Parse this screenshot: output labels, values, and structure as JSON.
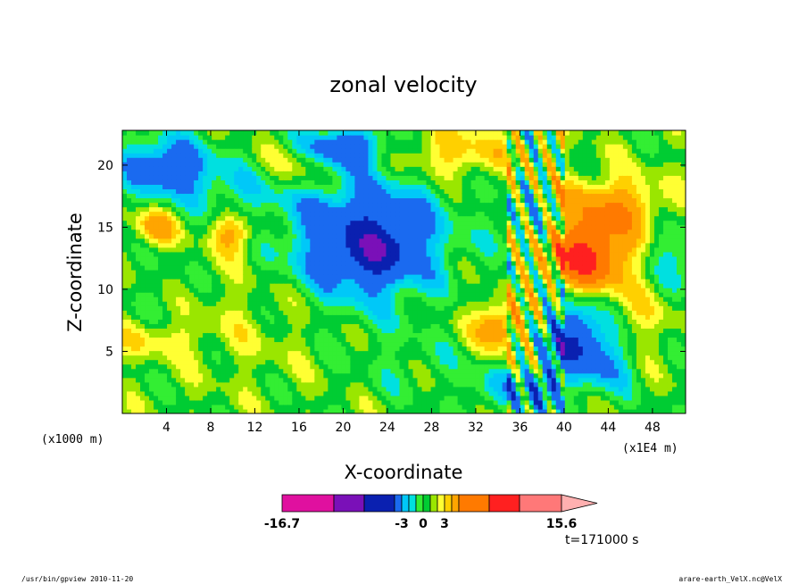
{
  "chart_data": {
    "type": "heatmap",
    "title": "zonal velocity",
    "xlabel": "X-coordinate",
    "ylabel": "Z-coordinate",
    "x_unit_left": "(x1000 m)",
    "x_unit_right": "(x1E4 m)",
    "xlim": [
      0,
      51
    ],
    "ylim": [
      0,
      22.8
    ],
    "x_ticks": [
      4,
      8,
      12,
      16,
      20,
      24,
      28,
      32,
      36,
      40,
      44,
      48
    ],
    "y_ticks": [
      5,
      10,
      15,
      20
    ],
    "time_label": "t=171000 s",
    "colorbar": {
      "levels": [
        -16.7,
        -12,
        -9,
        -6,
        -3,
        -2,
        -1,
        0,
        1,
        2,
        3,
        4,
        6,
        9,
        12,
        15.6
      ],
      "labels": [
        "-16.7",
        "-3",
        "0",
        "3",
        "15.6"
      ],
      "label_values": [
        -16.7,
        -3,
        0,
        3,
        15.6
      ],
      "colors": [
        "#e0109f",
        "#7a10b8",
        "#0a20b0",
        "#1a6af0",
        "#00c8f8",
        "#00e0e0",
        "#33ee33",
        "#00cc33",
        "#9ae600",
        "#ffff33",
        "#ffd000",
        "#ffa500",
        "#ff7a00",
        "#ff2020",
        "#ff7878",
        "#ffb0b0"
      ]
    },
    "footer_left": "/usr/bin/gpview  2010-11-20",
    "footer_right": "arare-earth_VelX.nc@VelX"
  }
}
